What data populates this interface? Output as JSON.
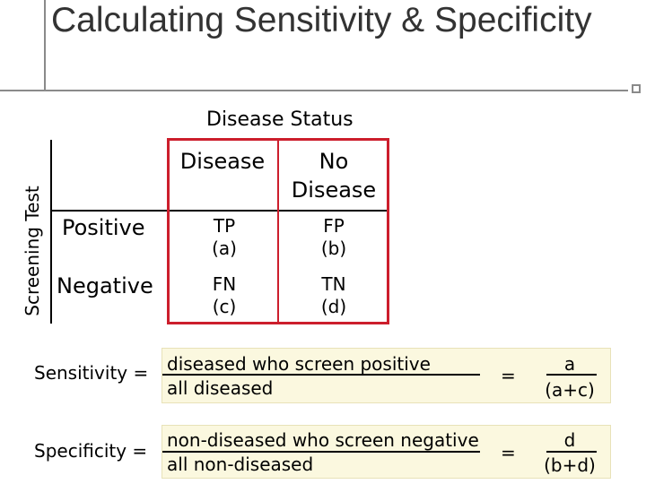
{
  "title": "Calculating Sensitivity & Specificity",
  "axis": {
    "top": "Disease Status",
    "side": "Screening Test"
  },
  "table": {
    "col_headers": [
      {
        "line1": "",
        "line2": "Disease"
      },
      {
        "line1": "No",
        "line2": "Disease"
      }
    ],
    "rows": [
      {
        "label": "Positive",
        "cells": [
          {
            "code": "TP",
            "letter": "(a)"
          },
          {
            "code": "FP",
            "letter": "(b)"
          }
        ]
      },
      {
        "label": "Negative",
        "cells": [
          {
            "code": "FN",
            "letter": "(c)"
          },
          {
            "code": "TN",
            "letter": "(d)"
          }
        ]
      }
    ]
  },
  "formulas": [
    {
      "label": "Sensitivity =",
      "numerator": "diseased who screen positive",
      "denominator": "all diseased",
      "equals": "=",
      "result_num": "a",
      "result_den": "(a+c)"
    },
    {
      "label": "Specificity =",
      "numerator": "non-diseased who screen negative",
      "denominator": "all non-diseased",
      "equals": "=",
      "result_num": "d",
      "result_den": "(b+d)"
    }
  ],
  "colors": {
    "title": "#333333",
    "highlight_box": "#cc1e2c",
    "formula_background": "#fbf8df",
    "decoration": "#8a8a8a"
  }
}
